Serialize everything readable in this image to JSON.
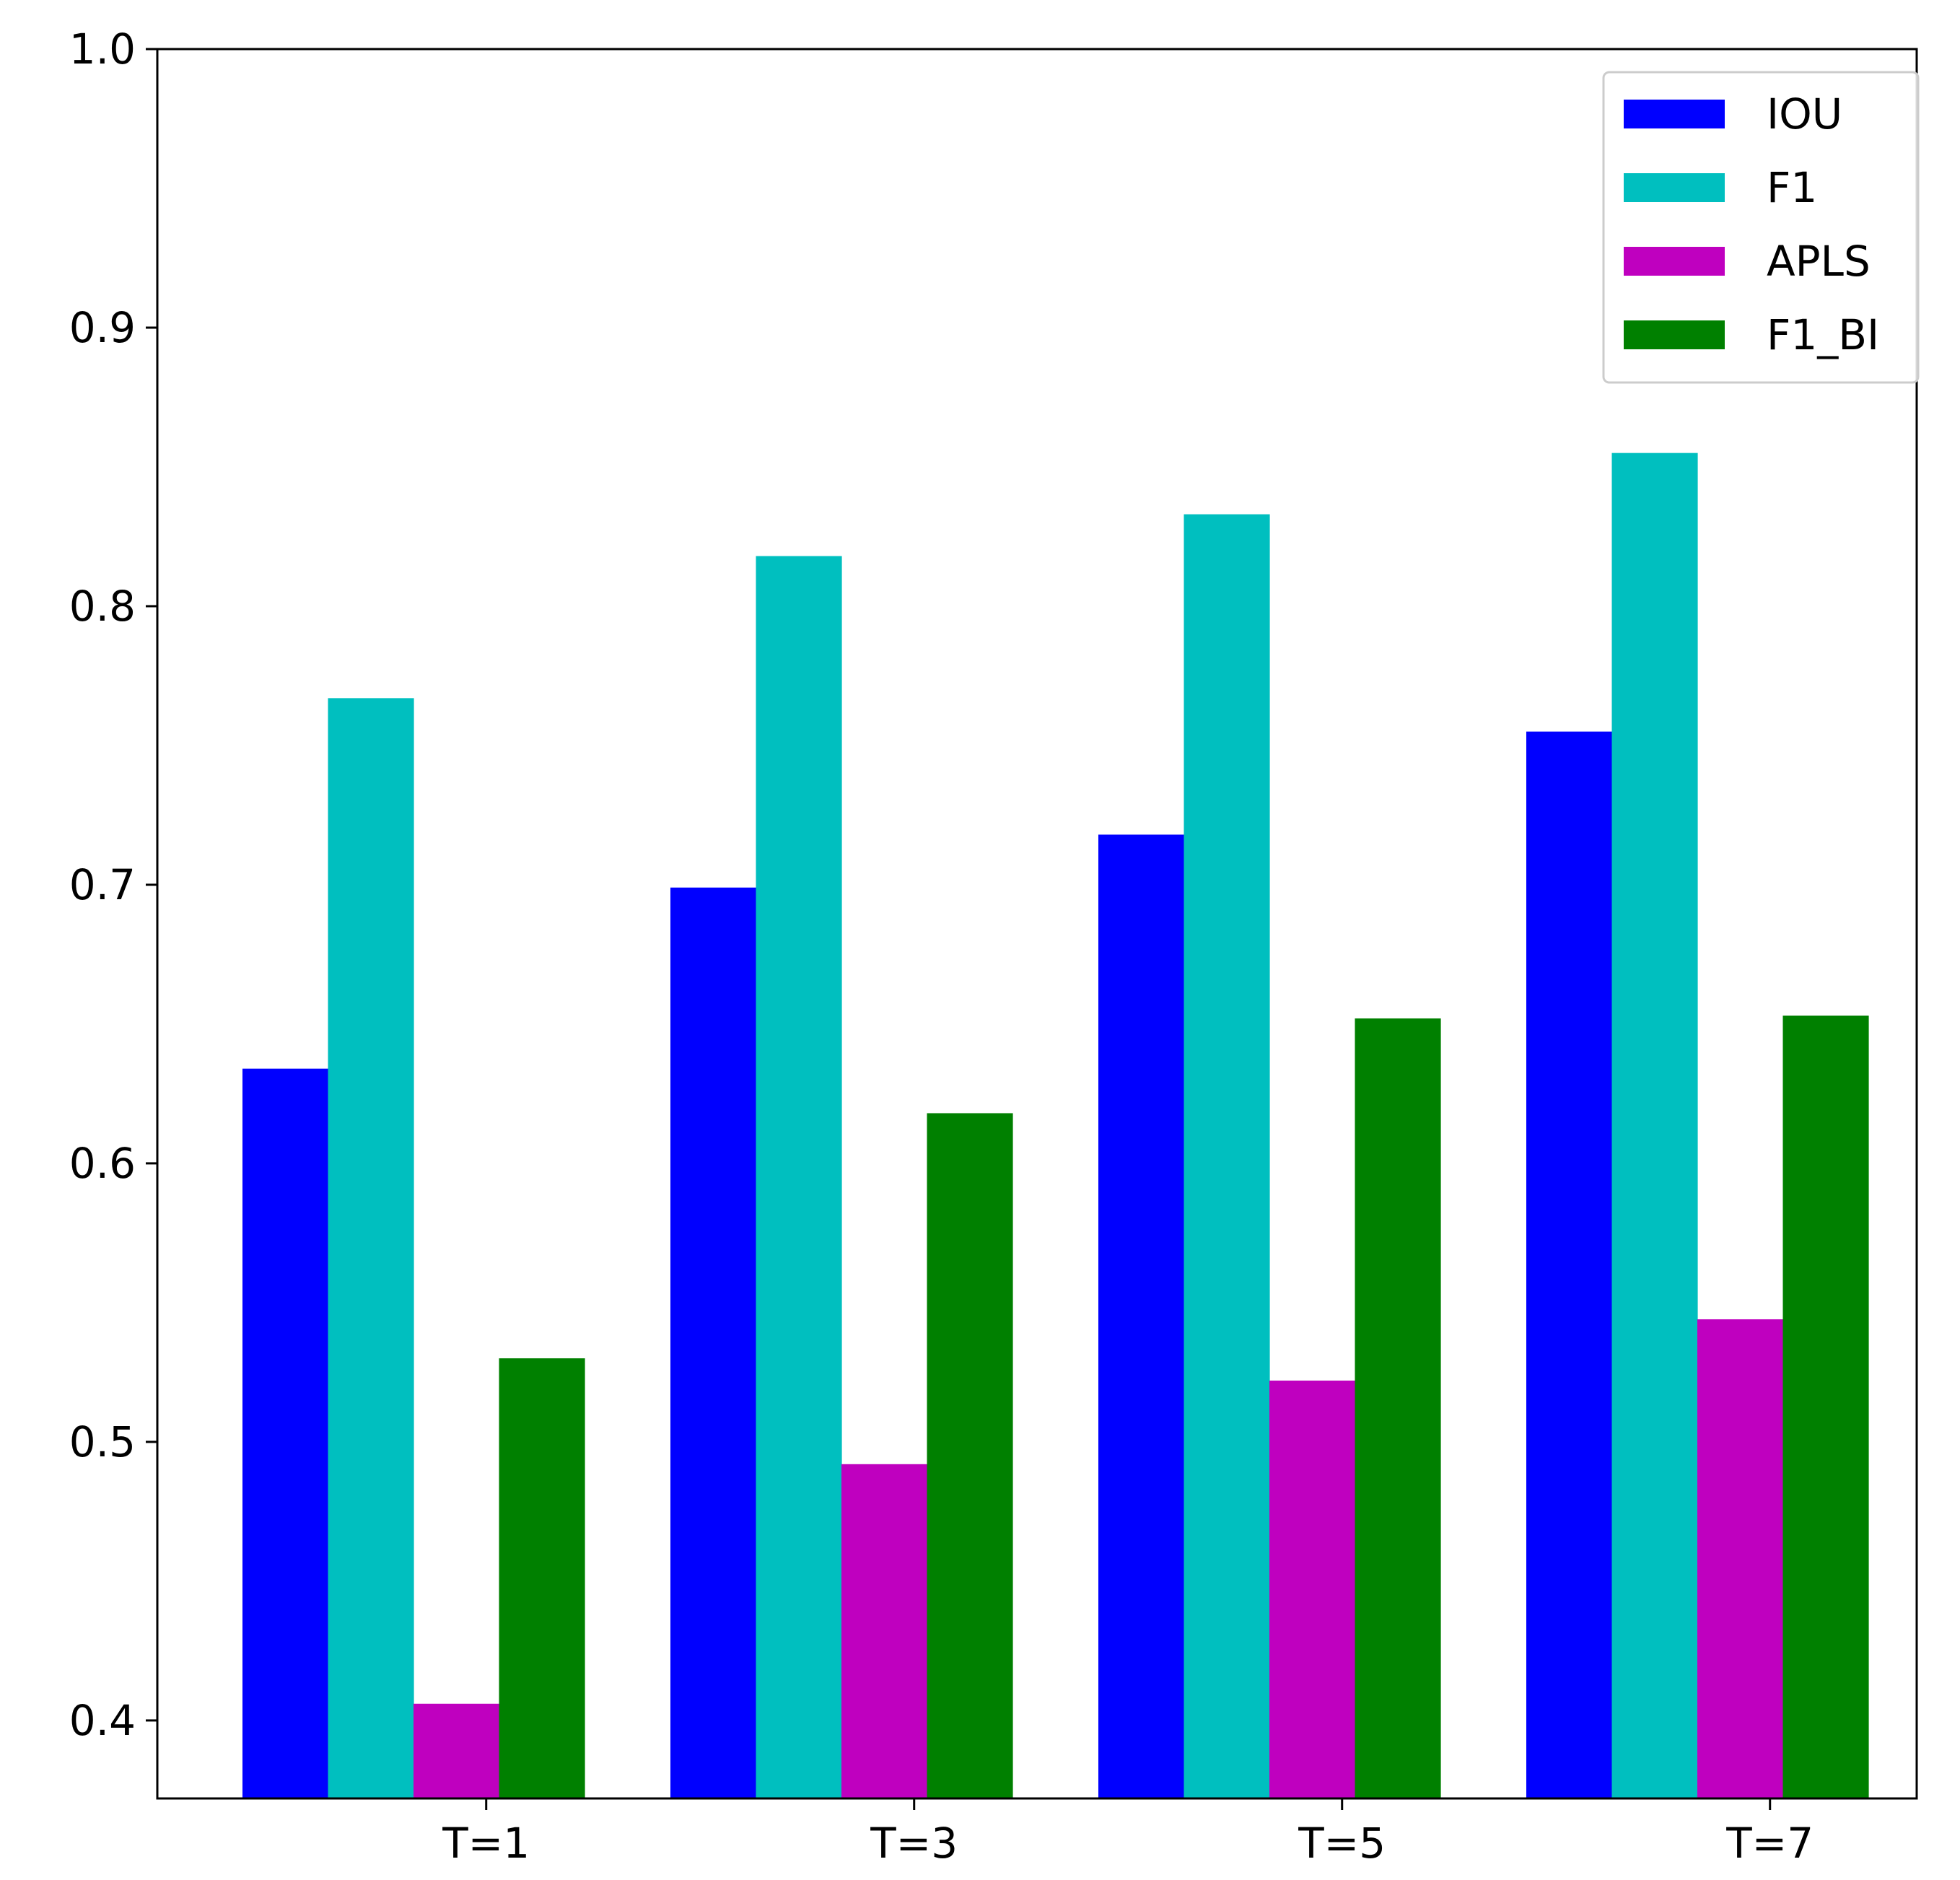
{
  "chart_data": {
    "type": "bar",
    "title": "",
    "xlabel": "",
    "ylabel": "",
    "categories": [
      "T=1",
      "T=3",
      "T=5",
      "T=7"
    ],
    "ylim": [
      0.372,
      1.0
    ],
    "yticks": [
      0.4,
      0.5,
      0.6,
      0.7,
      0.8,
      0.9,
      1.0
    ],
    "ytick_labels": [
      "0.4",
      "0.5",
      "0.6",
      "0.7",
      "0.8",
      "0.9",
      "1.0"
    ],
    "grid": false,
    "legend_position": "top-right",
    "series": [
      {
        "name": "IOU",
        "color": "#0000ff",
        "values": [
          0.634,
          0.699,
          0.718,
          0.755
        ]
      },
      {
        "name": "F1",
        "color": "#00bfbf",
        "values": [
          0.767,
          0.818,
          0.833,
          0.855
        ]
      },
      {
        "name": "APLS",
        "color": "#bf00bf",
        "values": [
          0.406,
          0.492,
          0.522,
          0.544
        ]
      },
      {
        "name": "F1_BI",
        "color": "#008000",
        "values": [
          0.53,
          0.618,
          0.652,
          0.653
        ]
      }
    ]
  }
}
